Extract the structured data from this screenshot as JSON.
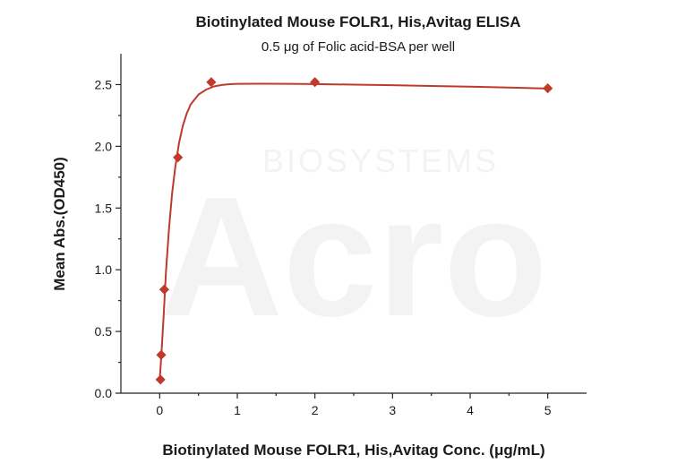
{
  "chart_data": {
    "type": "scatter",
    "title": "Biotinylated Mouse FOLR1, His,Avitag ELISA",
    "subtitle": "0.5 μg of Folic acid-BSA per well",
    "xlabel": "Biotinylated Mouse FOLR1, His,Avitag Conc. (μg/mL)",
    "ylabel": "Mean Abs.(OD450)",
    "xlim": [
      -0.5,
      5.5
    ],
    "ylim": [
      0,
      2.75
    ],
    "xticks": [
      0,
      1,
      2,
      3,
      4,
      5
    ],
    "yticks": [
      0.0,
      0.5,
      1.0,
      1.5,
      2.0,
      2.5
    ],
    "xtick_labels": [
      "0",
      "1",
      "2",
      "3",
      "4",
      "5"
    ],
    "ytick_labels": [
      "0.0",
      "0.5",
      "1.0",
      "1.5",
      "2.0",
      "2.5"
    ],
    "grid": false,
    "color": "#c0392b",
    "marker": "diamond",
    "series": [
      {
        "x": [
          0.0098,
          0.0195,
          0.0586,
          0.2344,
          0.664,
          2.0,
          5.0
        ],
        "y": [
          0.11,
          0.31,
          0.84,
          1.91,
          2.52,
          2.52,
          2.47
        ]
      }
    ],
    "fit_curve": {
      "x": [
        0.0,
        0.02,
        0.05,
        0.08,
        0.12,
        0.16,
        0.2,
        0.25,
        0.3,
        0.35,
        0.4,
        0.5,
        0.6,
        0.7,
        0.8,
        0.9,
        1.0,
        1.2,
        1.4,
        1.7,
        2.0,
        2.5,
        3.0,
        3.5,
        4.0,
        4.5,
        5.0
      ],
      "y": [
        0.1,
        0.3,
        0.62,
        0.98,
        1.33,
        1.62,
        1.83,
        2.03,
        2.17,
        2.27,
        2.34,
        2.42,
        2.46,
        2.485,
        2.497,
        2.503,
        2.506,
        2.507,
        2.507,
        2.506,
        2.504,
        2.5,
        2.495,
        2.489,
        2.483,
        2.476,
        2.468
      ]
    },
    "watermark": [
      "BIOSYSTEMS",
      "Acro"
    ]
  }
}
